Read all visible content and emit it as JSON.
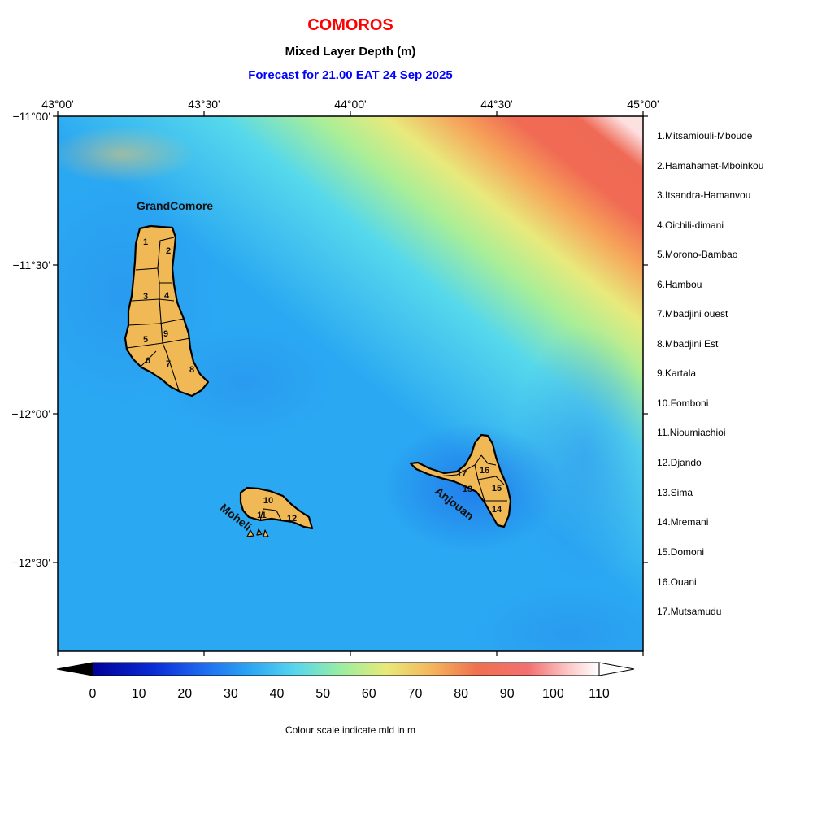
{
  "header": {
    "title": "COMOROS",
    "subtitle": "Mixed Layer Depth (m)",
    "forecast": "Forecast for  21.00 EAT 24 Sep 2025"
  },
  "axes": {
    "lon_labels": [
      "43°00'",
      "43°30'",
      "44°00'",
      "44°30'",
      "45°00'"
    ],
    "lat_labels": [
      "−11°00'",
      "−11°30'",
      "−12°00'",
      "−12°30'"
    ]
  },
  "islands": {
    "grand_comore": "GrandComore",
    "moheli": "Moheli",
    "anjouan": "Anjouan"
  },
  "districts": [
    "1.Mitsamiouli-Mboude",
    "2.Hamahamet-Mboinkou",
    "3.Itsandra-Hamanvou",
    "4.Oichili-dimani",
    "5.Morono-Bambao",
    "6.Hambou",
    "7.Mbadjini ouest",
    "8.Mbadjini Est",
    "9.Kartala",
    "10.Fomboni",
    "11.Nioumiachioi",
    "12.Djando",
    "13.Sima",
    "14.Mremani",
    "15.Domoni",
    "16.Ouani",
    "17.Mutsamudu"
  ],
  "district_numbers": [
    "1",
    "2",
    "3",
    "4",
    "5",
    "6",
    "7",
    "8",
    "9",
    "10",
    "11",
    "12",
    "13",
    "14",
    "15",
    "16",
    "17"
  ],
  "colorbar": {
    "ticks": [
      "0",
      "10",
      "20",
      "30",
      "40",
      "50",
      "60",
      "70",
      "80",
      "90",
      "100",
      "110"
    ],
    "caption": "Colour scale indicate mld in m"
  },
  "colors": {
    "land": "#f0b955",
    "title": "#ff0000",
    "forecast": "#0000ff"
  }
}
